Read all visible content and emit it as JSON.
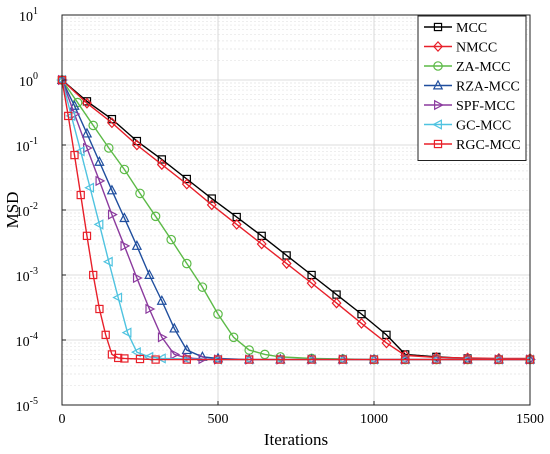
{
  "chart_data": {
    "type": "line",
    "xlabel": "Iterations",
    "ylabel": "MSD",
    "xlim": [
      0,
      1500
    ],
    "ylim": [
      1e-05,
      10
    ],
    "yscale": "log",
    "grid": true,
    "legend_placement": "top-right",
    "x_ticks": [
      "0",
      "500",
      "1000",
      "1500"
    ],
    "y_ticks": [
      {
        "base": "10",
        "exp": "-5"
      },
      {
        "base": "10",
        "exp": "-4"
      },
      {
        "base": "10",
        "exp": "-3"
      },
      {
        "base": "10",
        "exp": "-2"
      },
      {
        "base": "10",
        "exp": "-1"
      },
      {
        "base": "10",
        "exp": "0"
      },
      {
        "base": "10",
        "exp": "1"
      }
    ],
    "series": [
      {
        "name": "MCC",
        "color": "#000000",
        "marker": "square",
        "x": [
          0,
          80,
          160,
          240,
          320,
          400,
          480,
          560,
          640,
          720,
          800,
          880,
          960,
          1040,
          1100,
          1200,
          1300,
          1400,
          1500
        ],
        "y": [
          1.0,
          0.47,
          0.25,
          0.115,
          0.06,
          0.03,
          0.015,
          0.0078,
          0.004,
          0.002,
          0.001,
          0.0005,
          0.00025,
          0.00012,
          6e-05,
          5.5e-05,
          5.2e-05,
          5e-05,
          5e-05
        ]
      },
      {
        "name": "NMCC",
        "color": "#e8202a",
        "marker": "diamond",
        "x": [
          0,
          80,
          160,
          240,
          320,
          400,
          480,
          560,
          640,
          720,
          800,
          880,
          960,
          1040,
          1100,
          1200,
          1300,
          1400,
          1500
        ],
        "y": [
          1.0,
          0.44,
          0.22,
          0.1,
          0.05,
          0.025,
          0.012,
          0.006,
          0.003,
          0.0015,
          0.00075,
          0.00037,
          0.00018,
          9e-05,
          5.8e-05,
          5.4e-05,
          5.3e-05,
          5.2e-05,
          5.2e-05
        ]
      },
      {
        "name": "ZA-MCC",
        "color": "#5cba47",
        "marker": "circle",
        "x": [
          0,
          50,
          100,
          150,
          200,
          250,
          300,
          350,
          400,
          450,
          500,
          550,
          600,
          650,
          700,
          800,
          900,
          1000,
          1100,
          1200,
          1300,
          1400,
          1500
        ],
        "y": [
          1.0,
          0.45,
          0.2,
          0.09,
          0.042,
          0.018,
          0.008,
          0.0035,
          0.0015,
          0.00065,
          0.00025,
          0.00011,
          7e-05,
          6e-05,
          5.5e-05,
          5.2e-05,
          5.1e-05,
          5e-05,
          5e-05,
          5e-05,
          5e-05,
          5e-05,
          5e-05
        ]
      },
      {
        "name": "RZA-MCC",
        "color": "#1f4e9e",
        "marker": "triangle-up",
        "x": [
          0,
          40,
          80,
          120,
          160,
          200,
          240,
          280,
          320,
          360,
          400,
          450,
          500,
          600,
          700,
          800,
          900,
          1000,
          1100,
          1200,
          1300,
          1400,
          1500
        ],
        "y": [
          1.0,
          0.4,
          0.15,
          0.055,
          0.02,
          0.0075,
          0.0028,
          0.001,
          0.0004,
          0.00015,
          7e-05,
          5.5e-05,
          5.2e-05,
          5e-05,
          5e-05,
          5e-05,
          5e-05,
          5e-05,
          5e-05,
          5e-05,
          5e-05,
          5e-05,
          5e-05
        ]
      },
      {
        "name": "SPF-MCC",
        "color": "#8b3a9e",
        "marker": "triangle-right",
        "x": [
          0,
          40,
          80,
          120,
          160,
          200,
          240,
          280,
          320,
          360,
          400,
          450,
          500,
          600,
          700,
          800,
          900,
          1000,
          1100,
          1200,
          1300,
          1400,
          1500
        ],
        "y": [
          1.0,
          0.3,
          0.09,
          0.028,
          0.0085,
          0.0028,
          0.0009,
          0.0003,
          0.00011,
          6e-05,
          5.3e-05,
          5.1e-05,
          5e-05,
          5e-05,
          5e-05,
          5e-05,
          5e-05,
          5e-05,
          5e-05,
          5e-05,
          5e-05,
          5e-05,
          5e-05
        ]
      },
      {
        "name": "GC-MCC",
        "color": "#4fc3e0",
        "marker": "triangle-left",
        "x": [
          0,
          30,
          60,
          90,
          120,
          150,
          180,
          210,
          240,
          280,
          320,
          400,
          500,
          600,
          700,
          800,
          900,
          1000,
          1100,
          1200,
          1300,
          1400,
          1500
        ],
        "y": [
          1.0,
          0.28,
          0.08,
          0.022,
          0.006,
          0.0016,
          0.00045,
          0.00013,
          6.5e-05,
          5.5e-05,
          5.2e-05,
          5.1e-05,
          5e-05,
          5e-05,
          5e-05,
          5e-05,
          5e-05,
          5e-05,
          5e-05,
          5e-05,
          5e-05,
          5e-05,
          5e-05
        ]
      },
      {
        "name": "RGC-MCC",
        "color": "#e8202a",
        "marker": "square",
        "x": [
          0,
          20,
          40,
          60,
          80,
          100,
          120,
          140,
          160,
          180,
          200,
          250,
          300,
          400,
          500,
          600,
          700,
          800,
          900,
          1000,
          1100,
          1200,
          1300,
          1400,
          1500
        ],
        "y": [
          1.0,
          0.28,
          0.07,
          0.017,
          0.004,
          0.001,
          0.0003,
          0.00012,
          6e-05,
          5.3e-05,
          5.2e-05,
          5.1e-05,
          5e-05,
          5e-05,
          5e-05,
          5e-05,
          5e-05,
          5e-05,
          5e-05,
          5e-05,
          5e-05,
          5e-05,
          5e-05,
          5e-05,
          5e-05
        ]
      }
    ]
  }
}
